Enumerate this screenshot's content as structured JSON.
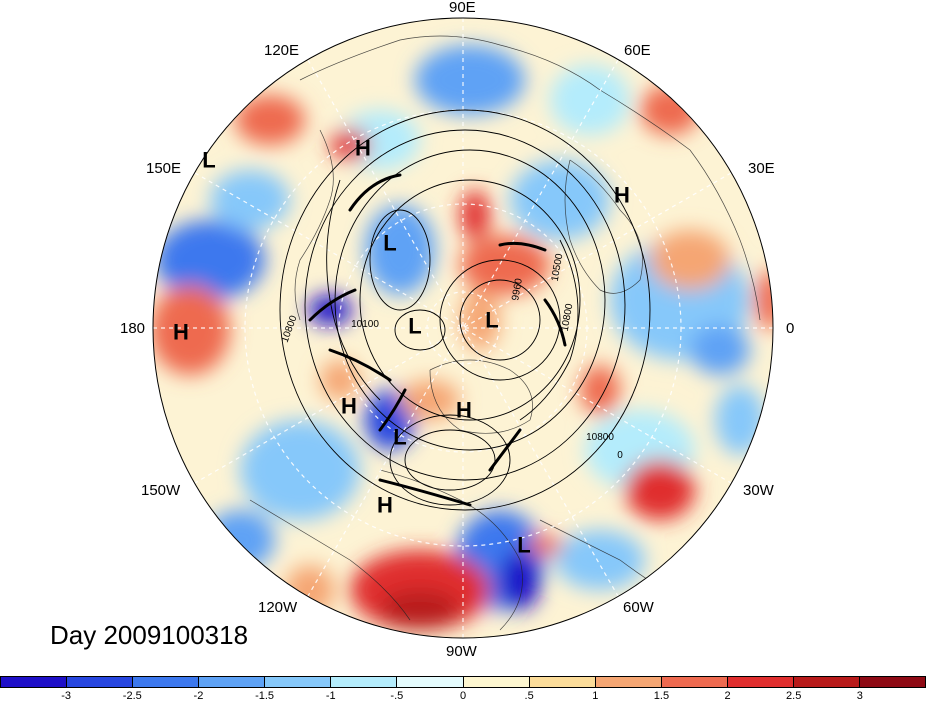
{
  "title": "Day 2009100318",
  "longitude_labels": {
    "top": "90E",
    "upper_left": "120E",
    "upper_right": "60E",
    "left_upper": "150E",
    "right_upper": "30E",
    "left": "180",
    "right": "0",
    "left_lower": "150W",
    "right_lower": "30W",
    "lower_left": "120W",
    "lower_right": "60W",
    "bottom": "90W"
  },
  "pressure_centers": [
    {
      "label": "H"
    },
    {
      "label": "L"
    },
    {
      "label": "L"
    },
    {
      "label": "H"
    },
    {
      "label": "L"
    },
    {
      "label": "L"
    },
    {
      "label": "H"
    },
    {
      "label": "H"
    },
    {
      "label": "L"
    },
    {
      "label": "H"
    },
    {
      "label": "H"
    },
    {
      "label": "L"
    }
  ],
  "contour_labels": [
    "10500",
    "10800",
    "10100",
    "10800",
    "10800",
    "9960",
    "0"
  ],
  "colorbar": {
    "labels": [
      "-3",
      "-2.5",
      "-2",
      "-1.5",
      "-1",
      "-.5",
      "0",
      ".5",
      "1",
      "1.5",
      "2",
      "2.5",
      "3"
    ],
    "colors": [
      "#1e0fc8",
      "#2746e0",
      "#3c78ee",
      "#5ea2f5",
      "#86c8fa",
      "#b4ecfc",
      "#e4fbfd",
      "#fdf6d0",
      "#fbdc9a",
      "#f5a673",
      "#ee6a50",
      "#e02e2e",
      "#b81a1a",
      "#8e0a14"
    ]
  }
}
